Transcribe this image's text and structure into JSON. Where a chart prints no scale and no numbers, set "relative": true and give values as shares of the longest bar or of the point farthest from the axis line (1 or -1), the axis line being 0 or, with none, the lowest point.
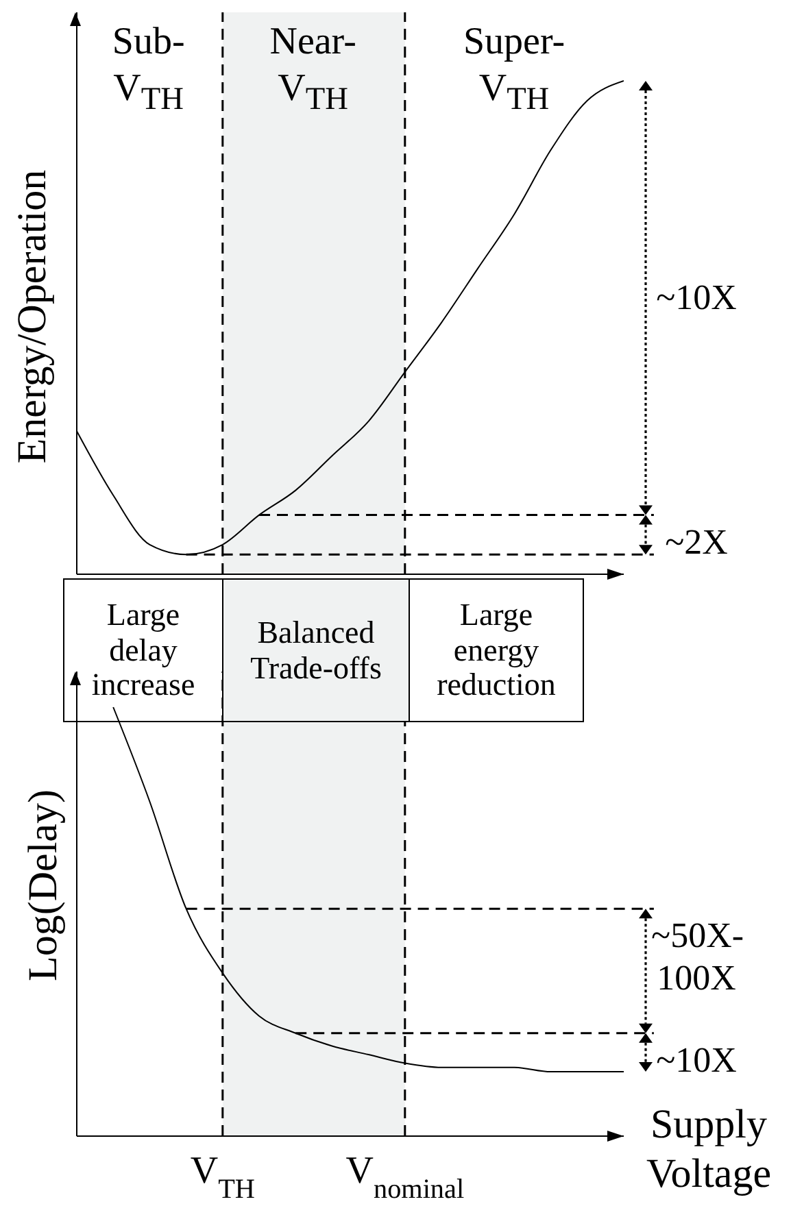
{
  "chart_data": [
    {
      "type": "line",
      "relative": true,
      "ylabel": "Energy/Operation",
      "categories": [
        null,
        null,
        null,
        null,
        "V$_{TH}$",
        null,
        null,
        null,
        null,
        "V$_{nominal}$",
        null,
        null,
        null,
        null,
        null,
        null
      ],
      "series": [
        {
          "color": "#000000",
          "values": [
            0.29,
            0.16,
            0.06,
            0.04,
            0.06,
            0.12,
            0.17,
            0.24,
            0.31,
            0.41,
            0.51,
            0.62,
            0.73,
            0.86,
            0.96,
            1.0
          ]
        }
      ],
      "tick_labels": false,
      "marker": "none",
      "line_style": "solid",
      "bands": [
        {
          "axis": "x",
          "from": "V$_{TH}$",
          "to": "V$_{nominal}$",
          "color": "#f0f2f2"
        }
      ],
      "ref_lines": [
        {
          "axis": "y",
          "value": 0.12,
          "line_style": "dashed"
        },
        {
          "axis": "y",
          "value": 0.04,
          "line_style": "dashed"
        }
      ],
      "annotations": [
        "Sub- V$_{TH}$",
        "Near- V$_{TH}$",
        "Super- V$_{TH}$",
        "~10X",
        "~2X"
      ]
    },
    {
      "type": "other",
      "annotations": [
        "Large delay increase",
        "Balanced Trade-offs",
        "Large energy reduction"
      ]
    },
    {
      "type": "line",
      "relative": true,
      "ylabel": "Log(Delay)",
      "xlabel": "Supply Voltage",
      "categories": [
        null,
        null,
        null,
        null,
        "V$_{TH}$",
        null,
        null,
        null,
        null,
        "V$_{nominal}$",
        null,
        null,
        null,
        null,
        null,
        null
      ],
      "series": [
        {
          "color": "#000000",
          "values": [
            null,
            1.0,
            0.78,
            0.53,
            0.38,
            0.28,
            0.24,
            0.21,
            0.19,
            0.17,
            0.16,
            0.16,
            0.16,
            0.15,
            0.15,
            0.15
          ]
        }
      ],
      "tick_labels": "x",
      "marker": "none",
      "line_style": "solid",
      "bands": [
        {
          "axis": "x",
          "from": "V$_{TH}$",
          "to": "V$_{nominal}$",
          "color": "#f0f2f2"
        }
      ],
      "ref_lines": [
        {
          "axis": "y",
          "value": 0.53,
          "line_style": "dashed"
        },
        {
          "axis": "y",
          "value": 0.24,
          "line_style": "dashed"
        }
      ],
      "annotations": [
        "~50X-100X",
        "~10X"
      ]
    }
  ]
}
